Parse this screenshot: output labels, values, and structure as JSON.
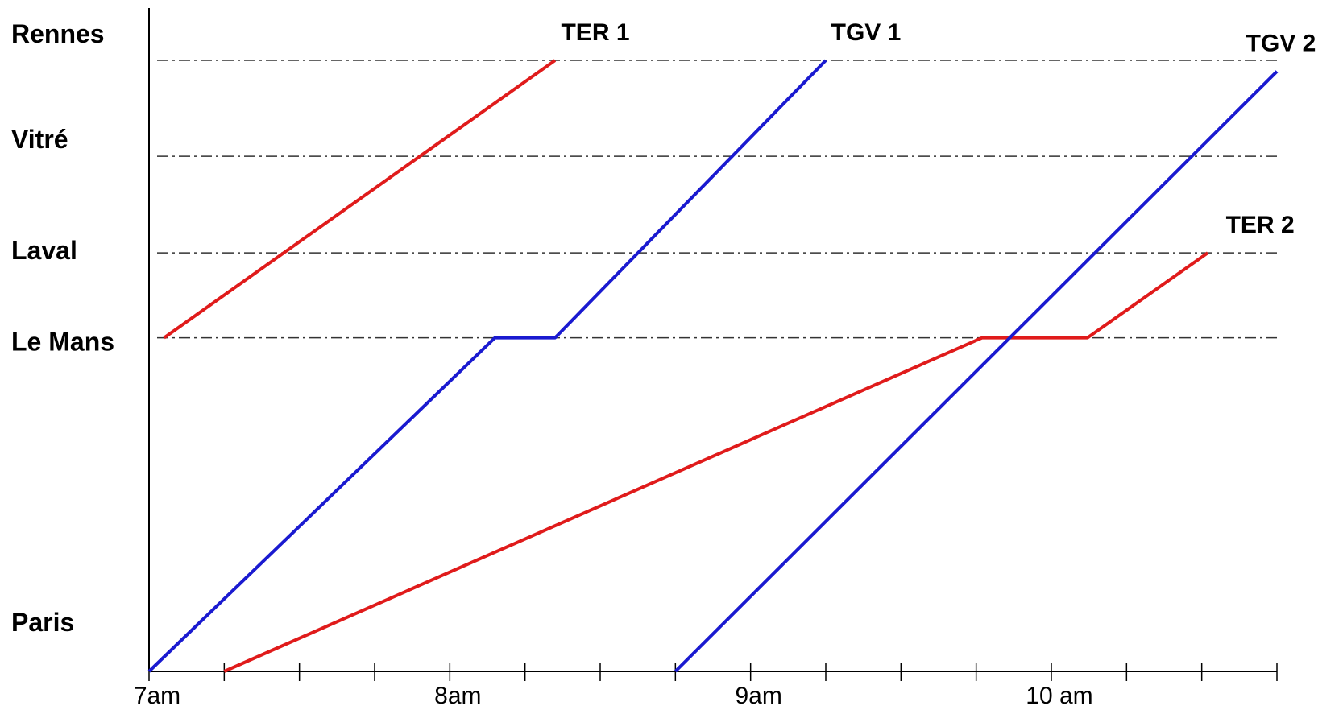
{
  "chart_data": {
    "type": "line",
    "title": "",
    "xlabel": "",
    "ylabel": "",
    "x_ticks": [
      {
        "value": 7,
        "label": "7am"
      },
      {
        "value": 8,
        "label": "8am"
      },
      {
        "value": 9,
        "label": "9am"
      },
      {
        "value": 10,
        "label": "10 am"
      }
    ],
    "x_minor_step": 0.25,
    "xlim": [
      7,
      10.75
    ],
    "stations": [
      {
        "name": "Rennes",
        "position": 1.0
      },
      {
        "name": "Vitré",
        "position": 0.843
      },
      {
        "name": "Laval",
        "position": 0.685
      },
      {
        "name": "Le Mans",
        "position": 0.546
      },
      {
        "name": "Paris",
        "position": 0.0
      }
    ],
    "grid_stations": [
      1.0,
      0.843,
      0.685,
      0.546
    ],
    "series": [
      {
        "name": "TER 1",
        "color": "#e01b1b",
        "points": [
          [
            7.05,
            0.546
          ],
          [
            8.35,
            1.0
          ]
        ]
      },
      {
        "name": "TGV 1",
        "color": "#1a1ad0",
        "points": [
          [
            7.0,
            0.0
          ],
          [
            8.15,
            0.546
          ],
          [
            8.35,
            0.546
          ],
          [
            9.25,
            1.0
          ]
        ]
      },
      {
        "name": "TER 2",
        "color": "#e01b1b",
        "points": [
          [
            7.25,
            0.0
          ],
          [
            9.77,
            0.546
          ],
          [
            10.12,
            0.546
          ],
          [
            10.52,
            0.685
          ]
        ]
      },
      {
        "name": "TGV 2",
        "color": "#1a1ad0",
        "points": [
          [
            8.75,
            0.0
          ],
          [
            10.75,
            0.982
          ]
        ]
      }
    ]
  }
}
